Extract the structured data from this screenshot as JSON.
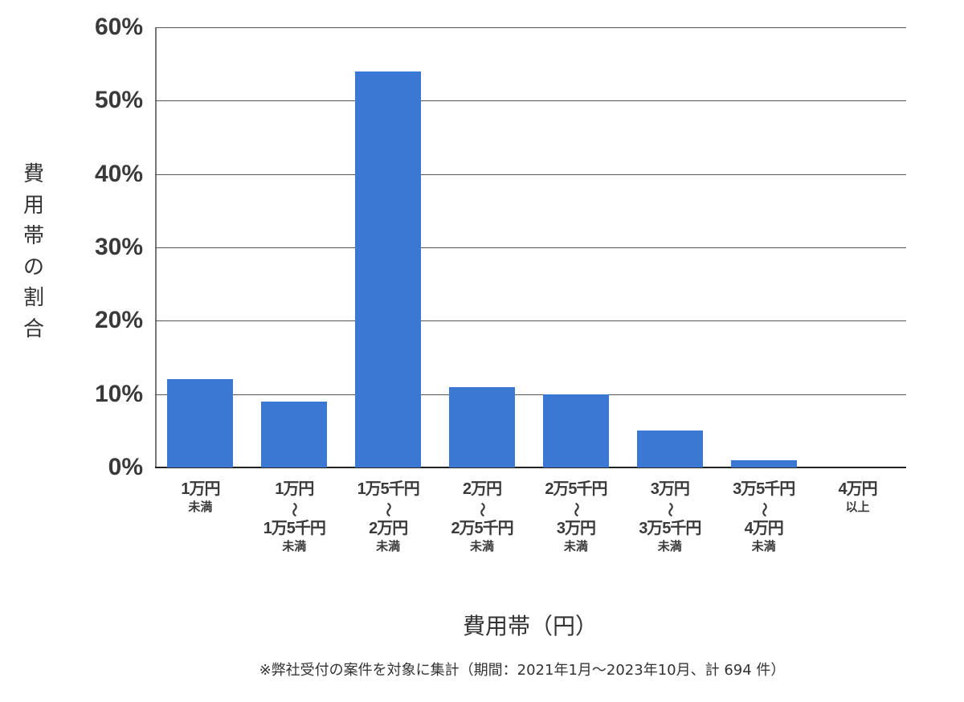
{
  "chart_data": {
    "type": "bar",
    "title": "",
    "xlabel": "費用帯（円）",
    "ylabel": "費用帯の割合",
    "ylim": [
      0,
      60
    ],
    "yticks": [
      "0%",
      "10%",
      "20%",
      "30%",
      "40%",
      "50%",
      "60%"
    ],
    "grid": true,
    "bar_color": "#3a78d4",
    "categories": [
      "1万円未満",
      "1万円〜1万5千円未満",
      "1万5千円〜2万円未満",
      "2万円〜2万5千円未満",
      "2万5千円〜3万円未満",
      "3万円〜3万5千円未満",
      "3万5千円〜4万円未満",
      "4万円以上"
    ],
    "values": [
      12,
      9,
      54,
      11,
      10,
      5,
      1,
      0
    ],
    "unit": "%"
  },
  "axis": {
    "y_label_chars": [
      "費",
      "用",
      "帯",
      "の",
      "割",
      "合"
    ],
    "x_title": "費用帯（円）"
  },
  "category_labels": [
    {
      "lines": [
        "1万円",
        "未満"
      ]
    },
    {
      "lines": [
        "1万円",
        "〜",
        "1万5千円",
        "未満"
      ]
    },
    {
      "lines": [
        "1万5千円",
        "〜",
        "2万円",
        "未満"
      ]
    },
    {
      "lines": [
        "2万円",
        "〜",
        "2万5千円",
        "未満"
      ]
    },
    {
      "lines": [
        "2万5千円",
        "〜",
        "3万円",
        "未満"
      ]
    },
    {
      "lines": [
        "3万円",
        "〜",
        "3万5千円",
        "未満"
      ]
    },
    {
      "lines": [
        "3万5千円",
        "〜",
        "4万円",
        "未満"
      ]
    },
    {
      "lines": [
        "4万円",
        "以上"
      ]
    }
  ],
  "footnote": "※弊社受付の案件を対象に集計（期間：2021年1月〜2023年10月、計 694 件）"
}
